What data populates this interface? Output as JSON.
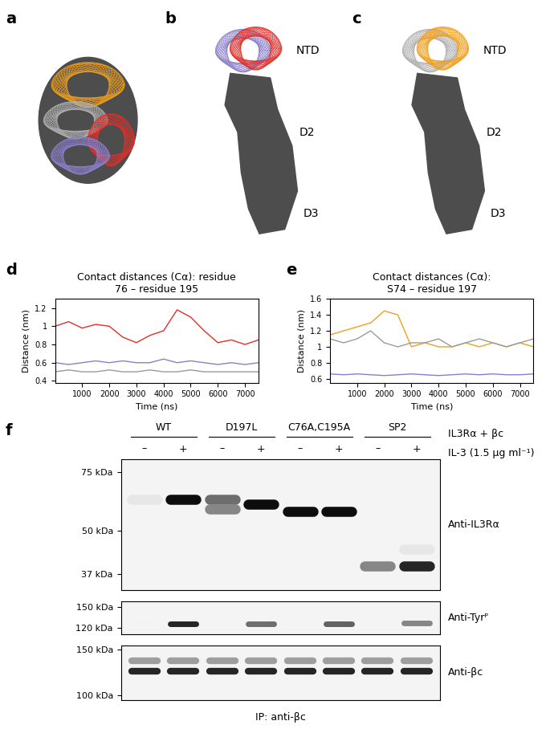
{
  "panel_labels": [
    "a",
    "b",
    "c",
    "d",
    "e",
    "f"
  ],
  "structures": {
    "b": {
      "labels": [
        "NTD",
        "D2",
        "D3"
      ]
    },
    "c": {
      "labels": [
        "NTD",
        "D2",
        "D3"
      ]
    }
  },
  "chart_data": [
    {
      "type": "line",
      "title": "Contact distances (Cα): residue\n76 – residue 195",
      "x_label": "Time (ns)",
      "y_label": "Distance (nm)",
      "x": [
        0,
        500,
        1000,
        1500,
        2000,
        2500,
        3000,
        3500,
        4000,
        4500,
        5000,
        5500,
        6000,
        6500,
        7000,
        7500
      ],
      "series": [
        {
          "color": "#e0302a",
          "values": [
            1.0,
            1.05,
            0.98,
            1.02,
            1.0,
            0.88,
            0.82,
            0.9,
            0.95,
            1.18,
            1.1,
            0.95,
            0.82,
            0.85,
            0.8,
            0.85
          ]
        },
        {
          "color": "#8a7fc8",
          "values": [
            0.6,
            0.58,
            0.6,
            0.62,
            0.6,
            0.62,
            0.6,
            0.6,
            0.64,
            0.6,
            0.62,
            0.6,
            0.58,
            0.6,
            0.58,
            0.6
          ]
        },
        {
          "color": "#9a9a9a",
          "values": [
            0.5,
            0.52,
            0.5,
            0.5,
            0.52,
            0.5,
            0.5,
            0.52,
            0.5,
            0.5,
            0.52,
            0.5,
            0.5,
            0.5,
            0.5,
            0.5
          ]
        }
      ],
      "xlim": [
        0,
        7500
      ],
      "xticks": [
        1000,
        2000,
        3000,
        4000,
        5000,
        6000,
        7000
      ],
      "ylim": [
        0.38,
        1.3
      ],
      "yticks": [
        0.4,
        0.6,
        0.8,
        1,
        1.2
      ]
    },
    {
      "type": "line",
      "title": "Contact distances (Cα):\nS74 – residue 197",
      "x_label": "Time (ns)",
      "y_label": "Distance (nm)",
      "x": [
        0,
        500,
        1000,
        1500,
        2000,
        2500,
        3000,
        3500,
        4000,
        4500,
        5000,
        5500,
        6000,
        6500,
        7000,
        7500
      ],
      "series": [
        {
          "color": "#f0a020",
          "values": [
            1.15,
            1.2,
            1.25,
            1.3,
            1.45,
            1.4,
            1.0,
            1.05,
            1.0,
            1.0,
            1.05,
            1.0,
            1.05,
            1.0,
            1.05,
            1.0
          ]
        },
        {
          "color": "#9a9a9a",
          "values": [
            1.1,
            1.05,
            1.1,
            1.2,
            1.05,
            1.0,
            1.05,
            1.05,
            1.1,
            1.0,
            1.05,
            1.1,
            1.05,
            1.0,
            1.05,
            1.1
          ]
        },
        {
          "color": "#8a7fc8",
          "values": [
            0.66,
            0.65,
            0.66,
            0.65,
            0.64,
            0.65,
            0.66,
            0.65,
            0.64,
            0.65,
            0.66,
            0.65,
            0.66,
            0.65,
            0.65,
            0.66
          ]
        }
      ],
      "xlim": [
        0,
        7500
      ],
      "xticks": [
        1000,
        2000,
        3000,
        4000,
        5000,
        6000,
        7000
      ],
      "ylim": [
        0.55,
        1.6
      ],
      "yticks": [
        0.6,
        0.8,
        1,
        1.2,
        1.4,
        1.6
      ]
    }
  ],
  "blot": {
    "groups": [
      "WT",
      "D197L",
      "C76A,C195A",
      "SP2"
    ],
    "lane_labels": [
      "–",
      "+",
      "–",
      "+",
      "–",
      "+",
      "–",
      "+"
    ],
    "header": "IL3Rα + βc",
    "treatment": "IL-3 (1.5 μg ml⁻¹)",
    "footer": "IP: anti-βc",
    "panels": [
      {
        "label": "Anti-IL3Rα",
        "ylim": [
          33,
          82
        ],
        "yticks": [
          {
            "value": 75,
            "label": "75 kDa"
          },
          {
            "value": 50,
            "label": "50 kDa"
          },
          {
            "value": 37,
            "label": "37 kDa"
          }
        ],
        "bands": [
          {
            "lane": 0,
            "kDa": 62,
            "intensity": 0.1
          },
          {
            "lane": 1,
            "kDa": 62,
            "intensity": 1.0
          },
          {
            "lane": 2,
            "kDa": 62,
            "intensity": 0.6
          },
          {
            "lane": 2,
            "kDa": 58,
            "intensity": 0.5
          },
          {
            "lane": 3,
            "kDa": 60,
            "intensity": 1.0
          },
          {
            "lane": 4,
            "kDa": 57,
            "intensity": 1.0
          },
          {
            "lane": 5,
            "kDa": 57,
            "intensity": 1.0
          },
          {
            "lane": 6,
            "kDa": 39,
            "intensity": 0.5
          },
          {
            "lane": 7,
            "kDa": 39,
            "intensity": 0.9
          },
          {
            "lane": 7,
            "kDa": 44,
            "intensity": 0.1
          }
        ]
      },
      {
        "label": "Anti-Tyrᴾ",
        "ylim": [
          112,
          160
        ],
        "yticks": [
          {
            "value": 150,
            "label": "150 kDa"
          },
          {
            "value": 120,
            "label": "120 kDa"
          }
        ],
        "bands": [
          {
            "lane": 0,
            "kDa": 125,
            "intensity": 0.05
          },
          {
            "lane": 1,
            "kDa": 125,
            "intensity": 0.9
          },
          {
            "lane": 3,
            "kDa": 125,
            "intensity": 0.6
          },
          {
            "lane": 5,
            "kDa": 125,
            "intensity": 0.65
          },
          {
            "lane": 7,
            "kDa": 127,
            "intensity": 0.5
          }
        ]
      },
      {
        "label": "Anti-βc",
        "ylim": [
          96,
          156
        ],
        "yticks": [
          {
            "value": 150,
            "label": "150 kDa"
          },
          {
            "value": 100,
            "label": "100 kDa"
          }
        ],
        "bands": [
          {
            "lane": 0,
            "kDa": 124,
            "intensity": 0.9
          },
          {
            "lane": 0,
            "kDa": 136,
            "intensity": 0.4
          },
          {
            "lane": 1,
            "kDa": 124,
            "intensity": 0.9
          },
          {
            "lane": 1,
            "kDa": 136,
            "intensity": 0.4
          },
          {
            "lane": 2,
            "kDa": 124,
            "intensity": 0.9
          },
          {
            "lane": 2,
            "kDa": 136,
            "intensity": 0.4
          },
          {
            "lane": 3,
            "kDa": 124,
            "intensity": 0.9
          },
          {
            "lane": 3,
            "kDa": 136,
            "intensity": 0.4
          },
          {
            "lane": 4,
            "kDa": 124,
            "intensity": 0.9
          },
          {
            "lane": 4,
            "kDa": 136,
            "intensity": 0.4
          },
          {
            "lane": 5,
            "kDa": 124,
            "intensity": 0.9
          },
          {
            "lane": 5,
            "kDa": 136,
            "intensity": 0.4
          },
          {
            "lane": 6,
            "kDa": 124,
            "intensity": 0.9
          },
          {
            "lane": 6,
            "kDa": 136,
            "intensity": 0.4
          },
          {
            "lane": 7,
            "kDa": 124,
            "intensity": 0.9
          },
          {
            "lane": 7,
            "kDa": 136,
            "intensity": 0.4
          }
        ]
      }
    ]
  }
}
